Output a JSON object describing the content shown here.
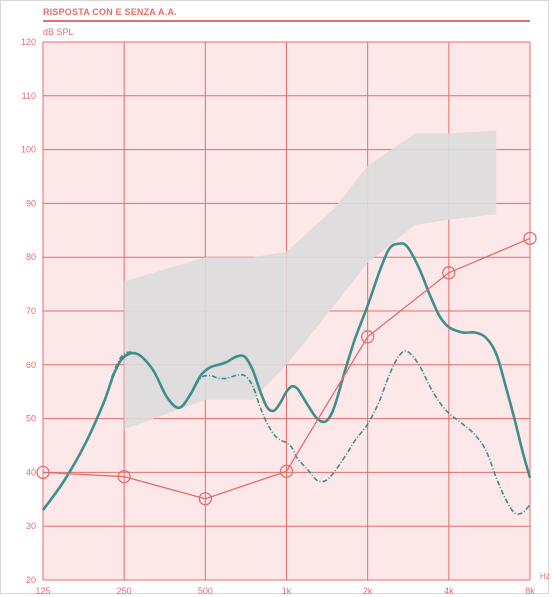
{
  "chart_data": {
    "type": "line",
    "title": "RISPOSTA CON E SENZA A.A.",
    "ylabel": "dB SPL",
    "xlabel": "Hz",
    "ylim": [
      20,
      120
    ],
    "y_ticks": [
      20,
      30,
      40,
      50,
      60,
      70,
      80,
      90,
      100,
      110,
      120
    ],
    "x_ticks": [
      "125",
      "250",
      "500",
      "1k",
      "2k",
      "4k",
      "8k"
    ],
    "grid": true,
    "colors": {
      "grid": "#e46d6d",
      "plot_bg": "#fce8e8",
      "band": "#dcdcdc",
      "with_aid": "#3f8e8c",
      "without_aid": "#3f8e8c",
      "threshold": "#e46d6d"
    },
    "band": {
      "x": [
        250,
        500,
        750,
        1000,
        1500,
        2000,
        3000,
        4000,
        6000
      ],
      "upper": [
        75.5,
        80,
        80,
        81,
        89,
        97,
        103,
        103,
        103.5
      ],
      "lower": [
        48,
        53.5,
        53.5,
        60,
        71,
        79,
        86,
        87,
        88
      ]
    },
    "series": [
      {
        "style": "solid",
        "x": [
          125,
          150,
          180,
          210,
          230,
          250,
          280,
          320,
          360,
          400,
          440,
          480,
          520,
          560,
          600,
          650,
          700,
          750,
          800,
          850,
          900,
          950,
          1000,
          1050,
          1100,
          1150,
          1200,
          1300,
          1400,
          1500,
          1650,
          1800,
          2000,
          2200,
          2400,
          2600,
          2800,
          3100,
          3400,
          3700,
          4000,
          4500,
          5000,
          5500,
          6000,
          6500,
          7000,
          7500,
          8000
        ],
        "values": [
          33,
          38.5,
          45.5,
          53,
          58.5,
          61.5,
          62,
          59,
          54,
          52,
          54.5,
          58,
          59.5,
          60,
          60.5,
          61.5,
          61.5,
          59,
          55,
          52,
          51.5,
          53,
          55,
          56,
          55.5,
          54,
          52.5,
          50,
          49.5,
          52,
          59,
          65,
          71,
          77,
          81.5,
          82.5,
          82,
          78,
          73,
          69,
          67,
          66,
          66,
          65,
          62,
          56,
          50,
          44,
          39
        ]
      },
      {
        "style": "dash-dot",
        "x": [
          125,
          150,
          180,
          210,
          230,
          250,
          280,
          320,
          360,
          400,
          440,
          480,
          520,
          560,
          600,
          650,
          700,
          750,
          800,
          850,
          900,
          950,
          1000,
          1050,
          1100,
          1200,
          1300,
          1400,
          1500,
          1650,
          1800,
          2000,
          2200,
          2400,
          2600,
          2800,
          3100,
          3400,
          3700,
          4000,
          4500,
          5000,
          5500,
          6000,
          6500,
          7000,
          7500,
          8000
        ],
        "values": [
          33,
          38.5,
          45.5,
          53,
          59,
          62,
          62,
          59,
          54,
          52,
          54.5,
          57.5,
          58,
          57.5,
          57.5,
          58,
          58,
          56,
          52,
          49,
          47,
          46,
          45.5,
          44.5,
          42.5,
          40.5,
          38.5,
          38.5,
          40,
          43,
          46,
          49,
          53,
          58,
          61.5,
          62.5,
          60,
          56,
          53,
          51,
          49,
          47,
          44,
          39,
          35,
          32.5,
          32.5,
          34
        ]
      },
      {
        "style": "markers",
        "x": [
          125,
          250,
          500,
          1000,
          2000,
          4000,
          8000
        ],
        "values": [
          40,
          39.2,
          35.1,
          40.2,
          65.2,
          77.1,
          83.5
        ]
      }
    ]
  }
}
